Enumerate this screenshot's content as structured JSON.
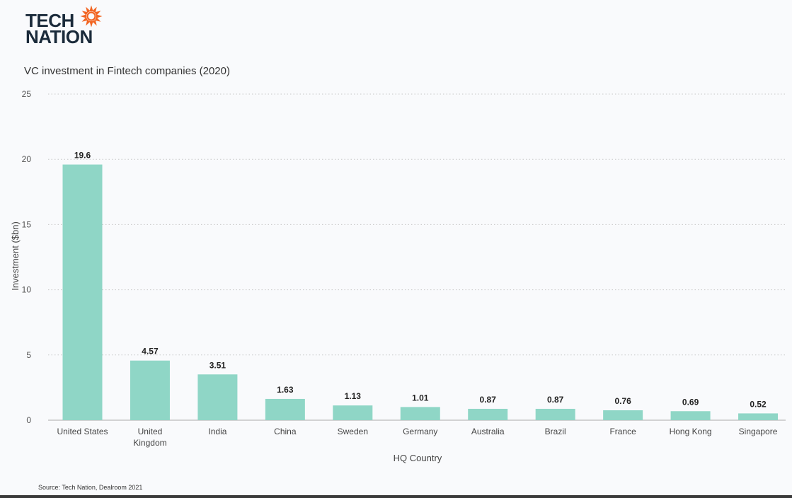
{
  "logo": {
    "line1": "TECH",
    "line2": "NATION",
    "text_color": "#1a2a3a",
    "mark_color": "#f26522",
    "mark_icon": "sunburst-icon"
  },
  "chart_data": {
    "type": "bar",
    "title": "VC investment in Fintech companies (2020)",
    "xlabel": "HQ Country",
    "ylabel": "Investment ($bn)",
    "ylim": [
      0,
      25
    ],
    "yticks": [
      0,
      5,
      10,
      15,
      20,
      25
    ],
    "grid": "horizontal-dotted",
    "bar_color": "#8fd6c6",
    "categories": [
      [
        "United States"
      ],
      [
        "United",
        "Kingdom"
      ],
      [
        "India"
      ],
      [
        "China"
      ],
      [
        "Sweden"
      ],
      [
        "Germany"
      ],
      [
        "Australia"
      ],
      [
        "Brazil"
      ],
      [
        "France"
      ],
      [
        "Hong Kong"
      ],
      [
        "Singapore"
      ]
    ],
    "values": [
      19.6,
      4.57,
      3.51,
      1.63,
      1.13,
      1.01,
      0.87,
      0.87,
      0.76,
      0.69,
      0.52
    ],
    "data_labels": [
      "19.6",
      "4.57",
      "3.51",
      "1.63",
      "1.13",
      "1.01",
      "0.87",
      "0.87",
      "0.76",
      "0.69",
      "0.52"
    ]
  },
  "footer": {
    "source": "Source: Tech Nation, Dealroom 2021"
  }
}
